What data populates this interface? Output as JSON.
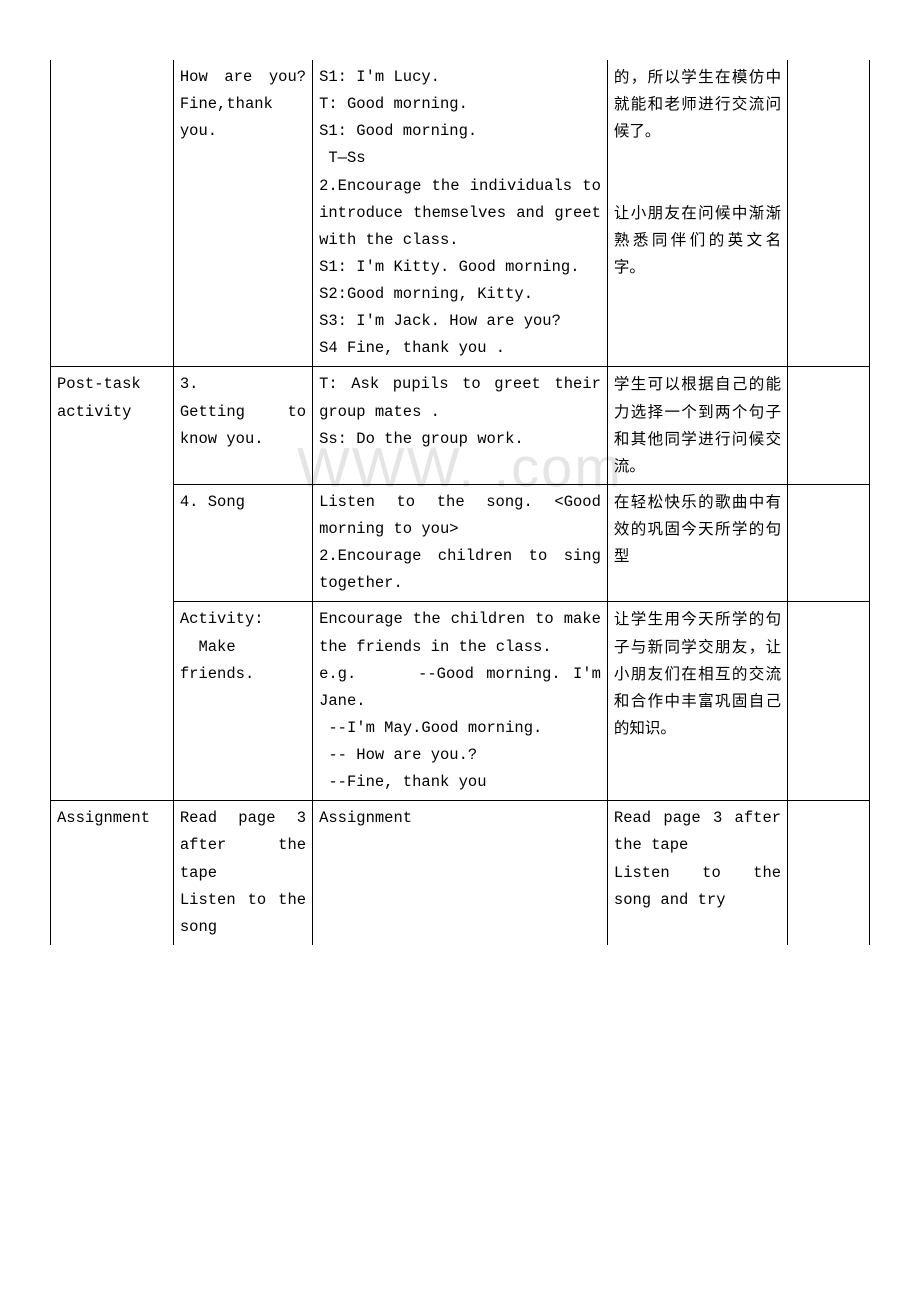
{
  "watermark": "WWW.         .com",
  "rows": [
    {
      "c1": "",
      "c2": "How are you? Fine,thank you.",
      "c3": "S1: I'm Lucy.\nT: Good morning.\nS1: Good morning.\n T—Ss\n2.Encourage the individuals to introduce themselves and greet with the class.\nS1: I'm Kitty. Good morning.\nS2:Good morning, Kitty.\nS3: I'm Jack. How are you?\nS4 Fine, thank you .",
      "c4": "的，所以学生在模仿中就能和老师进行交流问候了。\n\n\n让小朋友在问候中渐渐熟悉同伴们的英文名字。",
      "c5": ""
    },
    {
      "c1": "Post-task activity",
      "c2": "3.\nGetting to know you.",
      "c3": "T: Ask pupils to greet their group mates .\nSs: Do the group work.",
      "c4": "学生可以根据自己的能力选择一个到两个句子和其他同学进行问候交流。",
      "c5": "",
      "c1rowspan": 3
    },
    {
      "c2": "4. Song",
      "c3": "Listen to the song. <Good morning to you>\n2.Encourage children to sing together.",
      "c4": "在轻松快乐的歌曲中有效的巩固今天所学的句型",
      "c5": ""
    },
    {
      "c2": "Activity:\n  Make friends.",
      "c3": "Encourage the children to make the friends in the class.\ne.g.     --Good morning. I'm Jane.\n --I'm May.Good morning.\n -- How are you.?\n --Fine, thank you",
      "c4": "让学生用今天所学的句子与新同学交朋友，让小朋友们在相互的交流和合作中丰富巩固自己的知识。",
      "c5": ""
    },
    {
      "c1": "Assignment",
      "c2": "Read page 3 after the tape\nListen to the song",
      "c3": "Assignment",
      "c4": "Read page 3 after the tape\nListen to the song and try",
      "c5": ""
    }
  ]
}
